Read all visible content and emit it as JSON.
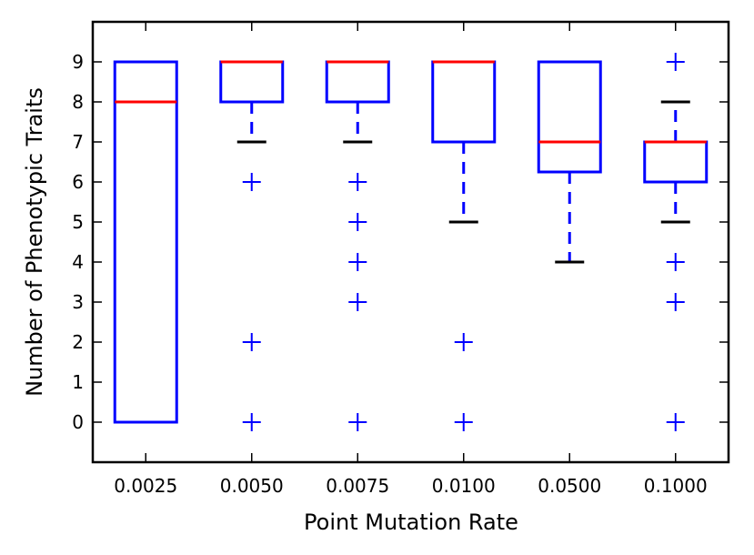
{
  "chart_data": {
    "type": "boxplot",
    "title": "",
    "xlabel": "Point Mutation Rate",
    "ylabel": "Number of Phenotypic Traits",
    "ylim": [
      -1,
      10
    ],
    "yticks": [
      0,
      1,
      2,
      3,
      4,
      5,
      6,
      7,
      8,
      9
    ],
    "categories": [
      "0.0025",
      "0.0050",
      "0.0075",
      "0.0100",
      "0.0500",
      "0.1000"
    ],
    "boxes": [
      {
        "category": "0.0025",
        "q1": 0,
        "median": 8,
        "q3": 9,
        "whisker_low": 0,
        "whisker_high": 9,
        "outliers": []
      },
      {
        "category": "0.0050",
        "q1": 8,
        "median": 9,
        "q3": 9,
        "whisker_low": 7,
        "whisker_high": 9,
        "outliers": [
          6,
          2,
          0
        ]
      },
      {
        "category": "0.0075",
        "q1": 8,
        "median": 9,
        "q3": 9,
        "whisker_low": 7,
        "whisker_high": 9,
        "outliers": [
          6,
          5,
          4,
          3,
          0
        ]
      },
      {
        "category": "0.0100",
        "q1": 7,
        "median": 9,
        "q3": 9,
        "whisker_low": 5,
        "whisker_high": 9,
        "outliers": [
          2,
          0
        ]
      },
      {
        "category": "0.0500",
        "q1": 6.25,
        "median": 7,
        "q3": 9,
        "whisker_low": 4,
        "whisker_high": 9,
        "outliers": []
      },
      {
        "category": "0.1000",
        "q1": 6,
        "median": 7,
        "q3": 7,
        "whisker_low": 5,
        "whisker_high": 8,
        "outliers": [
          9,
          4,
          3,
          0
        ]
      }
    ],
    "colors": {
      "box": "#0000ff",
      "median": "#ff0000",
      "whisker_cap": "#000000",
      "outlier": "#0000ff",
      "axes": "#000000"
    }
  }
}
